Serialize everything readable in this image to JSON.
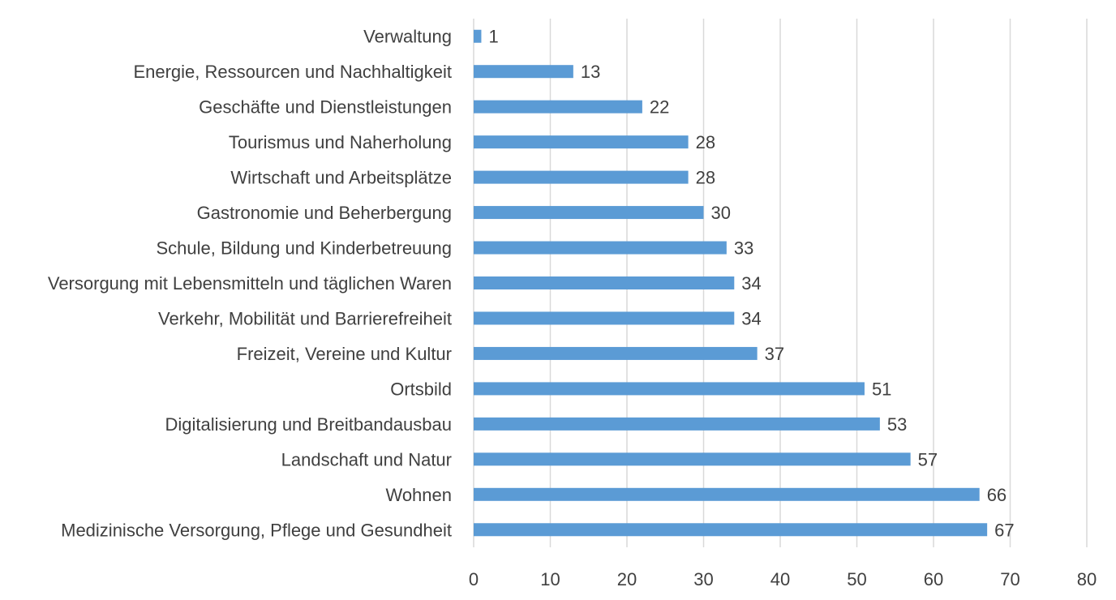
{
  "chart_data": {
    "type": "bar",
    "orientation": "horizontal",
    "title": "",
    "xlabel": "",
    "ylabel": "",
    "categories": [
      "Verwaltung",
      "Energie, Ressourcen und Nachhaltigkeit",
      "Geschäfte und Dienstleistungen",
      "Tourismus und Naherholung",
      "Wirtschaft und Arbeitsplätze",
      "Gastronomie und Beherbergung",
      "Schule, Bildung und Kinderbetreuung",
      "Versorgung mit Lebensmitteln und täglichen Waren",
      "Verkehr, Mobilität und Barrierefreiheit",
      "Freizeit, Vereine und Kultur",
      "Ortsbild",
      "Digitalisierung und Breitbandausbau",
      "Landschaft und Natur",
      "Wohnen",
      "Medizinische Versorgung, Pflege und Gesundheit"
    ],
    "values": [
      1,
      13,
      22,
      28,
      28,
      30,
      33,
      34,
      34,
      37,
      51,
      53,
      57,
      66,
      67
    ],
    "xlim": [
      0,
      80
    ],
    "xticks": [
      "0",
      "10",
      "20",
      "30",
      "40",
      "50",
      "60",
      "70",
      "80"
    ],
    "grid": "vertical",
    "legend": "none",
    "bar_color": "#5b9bd5"
  }
}
